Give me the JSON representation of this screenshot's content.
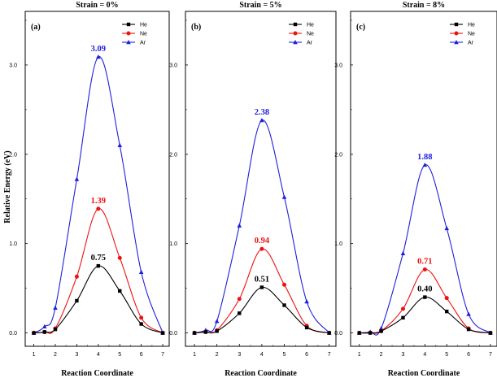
{
  "ylabel": "Relative Energy (eV)",
  "chart_data": [
    {
      "type": "line",
      "title": "Strain = 0%",
      "panel_label": "(a)",
      "xlabel": "Reaction Coordinate",
      "ylabel": "Relative Energy (eV)",
      "xlim": [
        0.6,
        7.3
      ],
      "ylim": [
        -0.15,
        3.6
      ],
      "x_ticks": [
        "1",
        "2",
        "3",
        "4",
        "5",
        "6",
        "7"
      ],
      "y_ticks": [
        "0.0",
        "1.0",
        "2.0",
        "3.0"
      ],
      "legend_position": "top-right",
      "x": [
        1,
        1.5,
        2,
        3,
        4,
        5,
        6,
        7
      ],
      "series": [
        {
          "name": "He",
          "color": "#000000",
          "marker": "square",
          "values": [
            0,
            0.01,
            0.04,
            0.36,
            0.75,
            0.47,
            0.1,
            0
          ],
          "peak_label": "0.75"
        },
        {
          "name": "Ne",
          "color": "#ee1111",
          "marker": "circle",
          "values": [
            0,
            0.01,
            0.05,
            0.63,
            1.39,
            0.84,
            0.17,
            0
          ],
          "peak_label": "1.39"
        },
        {
          "name": "Ar",
          "color": "#1f1fe0",
          "marker": "triangle",
          "values": [
            0,
            0.07,
            0.28,
            1.72,
            3.09,
            2.1,
            0.68,
            0
          ],
          "peak_label": "3.09"
        }
      ]
    },
    {
      "type": "line",
      "title": "Strain = 5%",
      "panel_label": "(b)",
      "xlabel": "Reaction Coordinate",
      "ylabel": "Relative Energy (eV)",
      "xlim": [
        0.6,
        7.3
      ],
      "ylim": [
        -0.15,
        3.6
      ],
      "x_ticks": [
        "1",
        "2",
        "3",
        "4",
        "5",
        "6",
        "7"
      ],
      "y_ticks": [
        "0.0",
        "1.0",
        "2.0",
        "3.0"
      ],
      "legend_position": "top-right",
      "x": [
        1,
        1.5,
        2,
        3,
        4,
        5,
        6,
        7
      ],
      "series": [
        {
          "name": "He",
          "color": "#000000",
          "marker": "square",
          "values": [
            0,
            0.01,
            0.02,
            0.22,
            0.51,
            0.31,
            0.06,
            0
          ],
          "peak_label": "0.51"
        },
        {
          "name": "Ne",
          "color": "#ee1111",
          "marker": "circle",
          "values": [
            0,
            0.01,
            0.03,
            0.38,
            0.94,
            0.54,
            0.08,
            0
          ],
          "peak_label": "0.94"
        },
        {
          "name": "Ar",
          "color": "#1f1fe0",
          "marker": "triangle",
          "values": [
            0,
            0.03,
            0.13,
            1.2,
            2.38,
            1.52,
            0.35,
            0
          ],
          "peak_label": "2.38"
        }
      ]
    },
    {
      "type": "line",
      "title": "Strain = 8%",
      "panel_label": "(c)",
      "xlabel": "Reaction Coordinate",
      "ylabel": "Relative Energy (eV)",
      "xlim": [
        0.6,
        7.3
      ],
      "ylim": [
        -0.15,
        3.6
      ],
      "x_ticks": [
        "1",
        "2",
        "3",
        "4",
        "5",
        "6",
        "7"
      ],
      "y_ticks": [
        "0.0",
        "1.0",
        "2.0",
        "3.0"
      ],
      "legend_position": "top-right",
      "x": [
        1,
        1.5,
        2,
        3,
        4,
        5,
        6,
        7
      ],
      "series": [
        {
          "name": "He",
          "color": "#000000",
          "marker": "square",
          "values": [
            0,
            0.0,
            0.02,
            0.17,
            0.4,
            0.24,
            0.04,
            0
          ],
          "peak_label": "0.40"
        },
        {
          "name": "Ne",
          "color": "#ee1111",
          "marker": "circle",
          "values": [
            0,
            0.0,
            0.02,
            0.27,
            0.71,
            0.39,
            0.05,
            0
          ],
          "peak_label": "0.71"
        },
        {
          "name": "Ar",
          "color": "#1f1fe0",
          "marker": "triangle",
          "values": [
            0,
            0.01,
            0.05,
            0.89,
            1.88,
            1.17,
            0.21,
            0
          ],
          "peak_label": "1.88"
        }
      ]
    }
  ]
}
